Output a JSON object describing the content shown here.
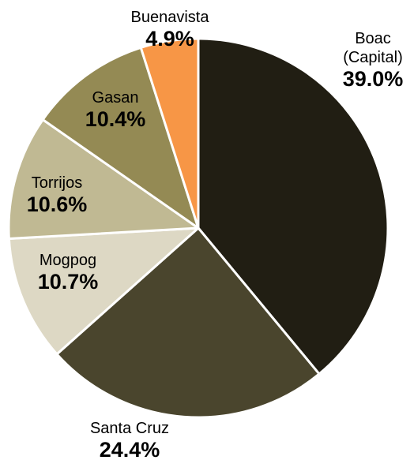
{
  "chart_data": {
    "type": "pie",
    "title": "",
    "slices": [
      {
        "label_lines": [
          "Boac",
          "(Capital)"
        ],
        "percent_label": "39.0%",
        "value": 39.0,
        "color": "#211E13"
      },
      {
        "label_lines": [
          "Santa Cruz"
        ],
        "percent_label": "24.4%",
        "value": 24.4,
        "color": "#4A452D"
      },
      {
        "label_lines": [
          "Mogpog"
        ],
        "percent_label": "10.7%",
        "value": 10.7,
        "color": "#DDD8C4"
      },
      {
        "label_lines": [
          "Torrijos"
        ],
        "percent_label": "10.6%",
        "value": 10.6,
        "color": "#C0B993"
      },
      {
        "label_lines": [
          "Gasan"
        ],
        "percent_label": "10.4%",
        "value": 10.4,
        "color": "#948A54"
      },
      {
        "label_lines": [
          "Buenavista"
        ],
        "percent_label": "4.9%",
        "value": 4.9,
        "color": "#F79646"
      }
    ]
  }
}
